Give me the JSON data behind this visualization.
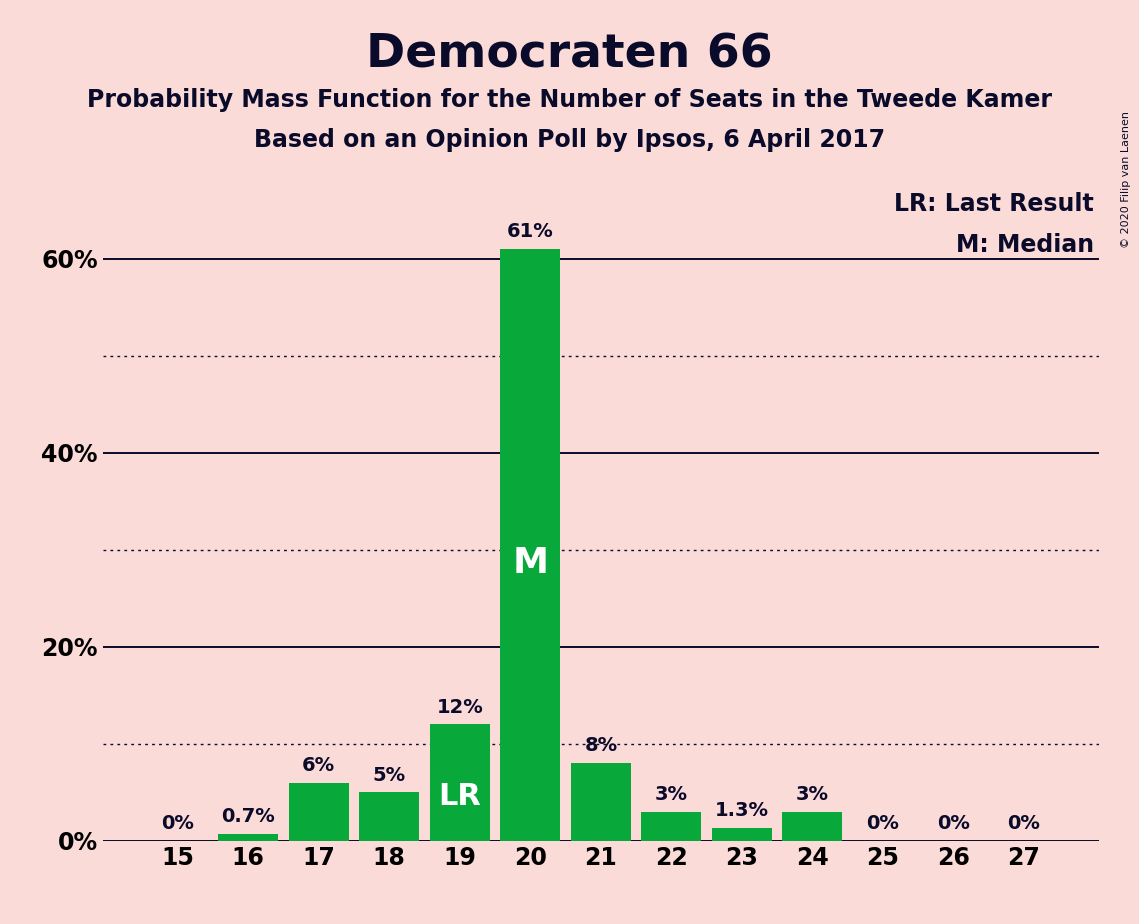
{
  "title": "Democraten 66",
  "subtitle1": "Probability Mass Function for the Number of Seats in the Tweede Kamer",
  "subtitle2": "Based on an Opinion Poll by Ipsos, 6 April 2017",
  "copyright_text": "© 2020 Filip van Laenen",
  "seats": [
    15,
    16,
    17,
    18,
    19,
    20,
    21,
    22,
    23,
    24,
    25,
    26,
    27
  ],
  "values": [
    0.0,
    0.7,
    6.0,
    5.0,
    12.0,
    61.0,
    8.0,
    3.0,
    1.3,
    3.0,
    0.0,
    0.0,
    0.0
  ],
  "labels": [
    "0%",
    "0.7%",
    "6%",
    "5%",
    "12%",
    "61%",
    "8%",
    "3%",
    "1.3%",
    "3%",
    "0%",
    "0%",
    "0%"
  ],
  "bar_color": "#09A83A",
  "background_color": "#FADBD8",
  "text_color": "#0A0A2A",
  "white_text_color": "#FFFFFF",
  "median_seat": 20,
  "last_result_seat": 19,
  "legend_lr": "LR: Last Result",
  "legend_m": "M: Median",
  "yticks": [
    0,
    20,
    40,
    60
  ],
  "ytick_labels": [
    "0%",
    "20%",
    "40%",
    "60%"
  ],
  "solid_gridlines": [
    0,
    20,
    40,
    60
  ],
  "dotted_gridlines": [
    10,
    30,
    50
  ],
  "title_fontsize": 34,
  "subtitle_fontsize": 17,
  "label_fontsize": 14,
  "tick_fontsize": 17,
  "legend_fontsize": 17,
  "bar_label_inside_fontsize": 26,
  "lr_label_inside_fontsize": 22,
  "ylim": [
    0,
    70
  ]
}
